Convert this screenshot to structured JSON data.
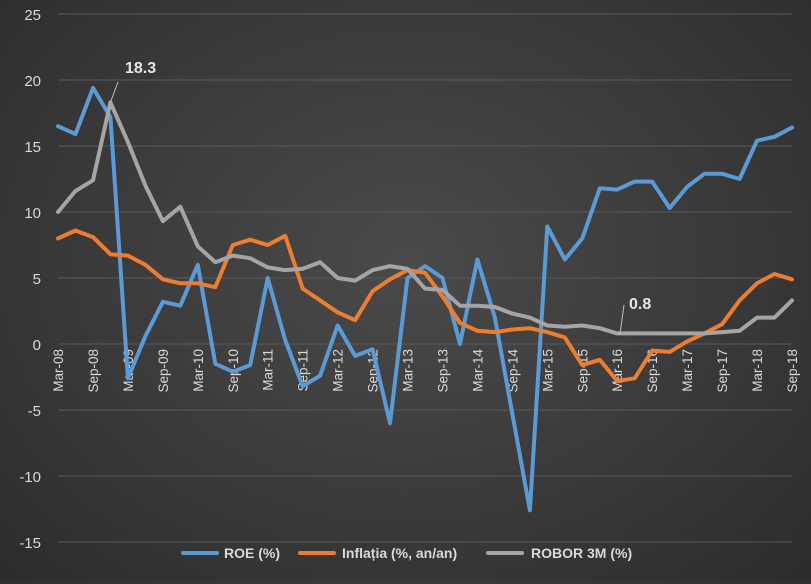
{
  "chart_data": {
    "type": "line",
    "title": "",
    "xlabel": "",
    "ylabel": "",
    "ylim": [
      -15,
      25
    ],
    "yticks": [
      -15,
      -10,
      -5,
      0,
      5,
      10,
      15,
      20,
      25
    ],
    "grid": true,
    "legend_position": "bottom",
    "x": [
      "Mar-08",
      "Jun-08",
      "Sep-08",
      "Dec-08",
      "Mar-09",
      "Jun-09",
      "Sep-09",
      "Dec-09",
      "Mar-10",
      "Jun-10",
      "Sep-10",
      "Dec-10",
      "Mar-11",
      "Jun-11",
      "Sep-11",
      "Dec-11",
      "Mar-12",
      "Jun-12",
      "Sep-12",
      "Dec-12",
      "Mar-13",
      "Jun-13",
      "Sep-13",
      "Dec-13",
      "Mar-14",
      "Jun-14",
      "Sep-14",
      "Dec-14",
      "Mar-15",
      "Jun-15",
      "Sep-15",
      "Dec-15",
      "Mar-16",
      "Jun-16",
      "Sep-16",
      "Dec-16",
      "Mar-17",
      "Jun-17",
      "Sep-17",
      "Dec-17",
      "Mar-18",
      "Jun-18",
      "Sep-18"
    ],
    "x_tick_labels": [
      "Mar-08",
      "Sep-08",
      "Mar-09",
      "Sep-09",
      "Mar-10",
      "Sep-10",
      "Mar-11",
      "Sep-11",
      "Mar-12",
      "Sep-12",
      "Mar-13",
      "Sep-13",
      "Mar-14",
      "Sep-14",
      "Mar-15",
      "Sep-15",
      "Mar-16",
      "Sep-16",
      "Mar-17",
      "Sep-17",
      "Mar-18",
      "Sep-18"
    ],
    "series": [
      {
        "name": "ROE (%)",
        "color": "#5b9bd5",
        "values": [
          16.5,
          15.9,
          19.4,
          17.2,
          -2.6,
          0.6,
          3.2,
          2.9,
          6.0,
          -1.5,
          -2.1,
          -1.6,
          5.0,
          0.3,
          -3.2,
          -2.4,
          1.4,
          -0.9,
          -0.4,
          -6.0,
          5.0,
          5.9,
          5.0,
          0.0,
          6.4,
          2.0,
          -5.3,
          -12.6,
          8.9,
          6.4,
          8.0,
          11.8,
          11.7,
          12.3,
          12.3,
          10.3,
          11.9,
          12.9,
          12.9,
          12.5,
          15.4,
          15.7,
          16.4
        ]
      },
      {
        "name": "Inflația (%, an/an)",
        "color": "#ed7d31",
        "values": [
          8.0,
          8.6,
          8.1,
          6.8,
          6.7,
          6.0,
          4.9,
          4.6,
          4.6,
          4.3,
          7.5,
          7.9,
          7.5,
          8.2,
          4.2,
          3.3,
          2.4,
          1.8,
          4.0,
          4.9,
          5.6,
          5.4,
          3.6,
          1.6,
          1.0,
          0.9,
          1.1,
          1.2,
          0.9,
          0.5,
          -1.6,
          -1.2,
          -2.8,
          -2.6,
          -0.5,
          -0.6,
          0.2,
          0.8,
          1.5,
          3.3,
          4.6,
          5.3,
          4.9
        ]
      },
      {
        "name": "ROBOR 3M (%)",
        "color": "#a5a5a5",
        "values": [
          10.0,
          11.6,
          12.4,
          18.3,
          15.3,
          12.0,
          9.3,
          10.4,
          7.4,
          6.2,
          6.7,
          6.5,
          5.8,
          5.6,
          5.7,
          6.2,
          5.0,
          4.8,
          5.6,
          5.9,
          5.7,
          4.2,
          4.1,
          2.9,
          2.9,
          2.8,
          2.3,
          2.0,
          1.4,
          1.3,
          1.4,
          1.2,
          0.8,
          0.8,
          0.8,
          0.8,
          0.8,
          0.8,
          0.9,
          1.0,
          2.0,
          2.0,
          3.3
        ]
      }
    ],
    "annotations": [
      {
        "text": "18.3",
        "series": "ROBOR 3M (%)",
        "x": "Dec-08",
        "y": 18.3
      },
      {
        "text": "0.8",
        "series": "ROBOR 3M (%)",
        "x": "Mar-16",
        "y": 0.8
      }
    ]
  },
  "colors": {
    "axis_text": "#d9d9d9",
    "gridline": "#595959",
    "annotation_text": "#e6e6e6",
    "annotation_leader": "#bfbfbf"
  }
}
